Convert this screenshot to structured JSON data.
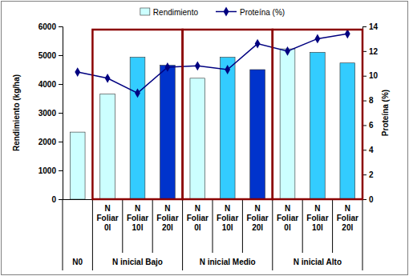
{
  "chart_data": {
    "type": "bar",
    "categories": [
      null,
      "N Foliar 0l",
      "N Foliar 10l",
      "N Foliar 20l",
      "N Foliar 0l",
      "N Foliar 10l",
      "N Foliar 20l",
      "N Foliar 0l",
      "N Foliar 10l",
      "N Foliar 20l"
    ],
    "groups": [
      {
        "label": "N0",
        "start": 0,
        "end": 0
      },
      {
        "label": "N inicial Bajo",
        "start": 1,
        "end": 3
      },
      {
        "label": "N inicial Medio",
        "start": 4,
        "end": 6
      },
      {
        "label": "N inicial Alto",
        "start": 7,
        "end": 9
      }
    ],
    "series": [
      {
        "name": "Rendimiento",
        "type": "bar",
        "colors": [
          "#ccffff",
          "#ccffff",
          "#33ccff",
          "#0033cc",
          "#ccffff",
          "#33ccff",
          "#0033cc",
          "#ccffff",
          "#33ccff",
          "#33ccff"
        ],
        "values": [
          2330,
          3650,
          4930,
          4650,
          4200,
          4930,
          4500,
          5220,
          5100,
          4730
        ]
      },
      {
        "name": "Proteína (%)",
        "type": "line",
        "axis": "y2",
        "color": "#000080",
        "marker": "diamond",
        "values": [
          10.3,
          9.8,
          8.6,
          10.7,
          10.8,
          10.5,
          12.6,
          12.0,
          13.0,
          13.4
        ]
      }
    ],
    "ylabel": "Rendimiento (kg/ha)",
    "y2label": "Proteína (%)",
    "ylim": [
      0,
      6000
    ],
    "yticks": [
      0,
      1000,
      2000,
      3000,
      4000,
      5000,
      6000
    ],
    "y2lim": [
      0,
      14
    ],
    "y2ticks": [
      0,
      2,
      4,
      6,
      8,
      10,
      12,
      14
    ],
    "legend": "top",
    "grid": false
  }
}
